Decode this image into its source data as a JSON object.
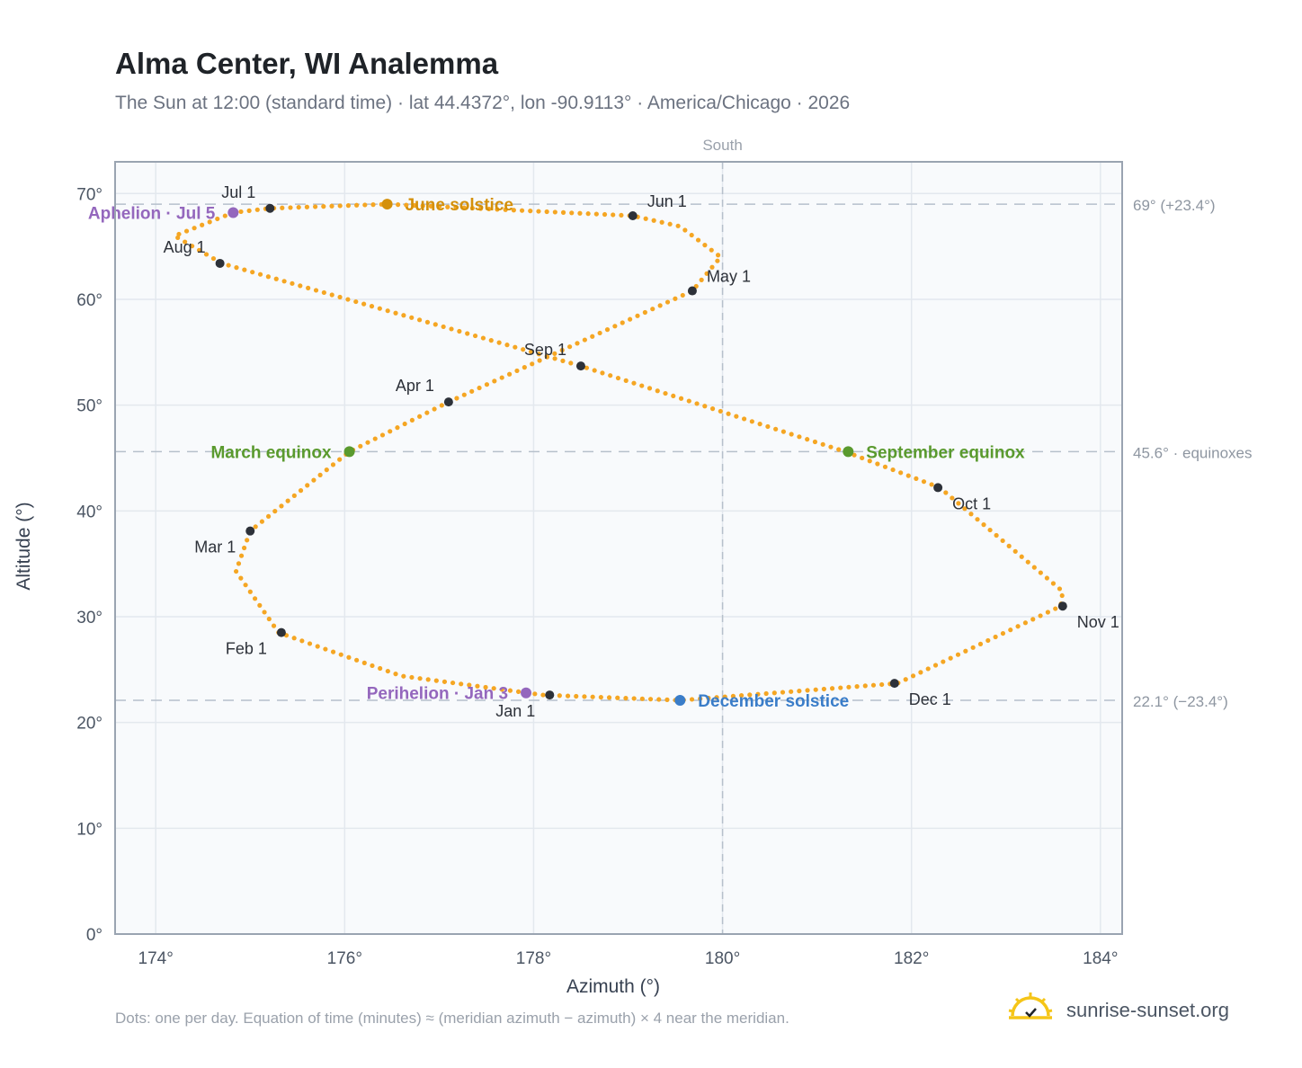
{
  "header": {
    "title": "Alma Center, WI Analemma",
    "subtitle": "The Sun at 12:00 (standard time) · lat 44.4372°, lon -90.9113° · America/Chicago · 2026"
  },
  "footer": {
    "note": "Dots: one per day. Equation of time (minutes) ≈ (meridian azimuth − azimuth) × 4 near the meridian.",
    "brand": "sunrise-sunset.org"
  },
  "colors": {
    "curve": "#f5a623",
    "month_marker": "#2d3139",
    "june_solstice": "#d4900a",
    "december_solstice": "#3a7dc9",
    "equinox": "#5a9a2e",
    "apsis": "#9467bd",
    "plot_bg": "#f8fafc",
    "grid": "#e3e8ee",
    "reference_line": "#b6c0cb"
  },
  "chart_data": {
    "type": "scatter",
    "xlabel": "Azimuth (°)",
    "ylabel": "Altitude (°)",
    "xlim": [
      173.57,
      184.23
    ],
    "ylim": [
      0,
      73
    ],
    "x_ticks": [
      {
        "value": 174,
        "label": "174°"
      },
      {
        "value": 176,
        "label": "176°"
      },
      {
        "value": 178,
        "label": "178°"
      },
      {
        "value": 180,
        "label": "180°"
      },
      {
        "value": 182,
        "label": "182°"
      },
      {
        "value": 184,
        "label": "184°"
      }
    ],
    "y_ticks": [
      {
        "value": 0,
        "label": "0°"
      },
      {
        "value": 10,
        "label": "10°"
      },
      {
        "value": 20,
        "label": "20°"
      },
      {
        "value": 30,
        "label": "30°"
      },
      {
        "value": 40,
        "label": "40°"
      },
      {
        "value": 50,
        "label": "50°"
      },
      {
        "value": 60,
        "label": "60°"
      },
      {
        "value": 70,
        "label": "70°"
      }
    ],
    "grid": true,
    "meridian": {
      "azimuth": 180,
      "label": "South"
    },
    "reference_lines": [
      {
        "altitude": 69.0,
        "label": "69° (+23.4°)"
      },
      {
        "altitude": 45.6,
        "label": "45.6° · equinoxes"
      },
      {
        "altitude": 22.1,
        "label": "22.1° (−23.4°)"
      }
    ],
    "curve_waypoints": [
      {
        "az": 178.1,
        "alt": 22.6
      },
      {
        "az": 176.6,
        "alt": 24.4
      },
      {
        "az": 175.3,
        "alt": 28.5
      },
      {
        "az": 174.85,
        "alt": 34.3
      },
      {
        "az": 175.0,
        "alt": 38.1
      },
      {
        "az": 176.05,
        "alt": 45.6
      },
      {
        "az": 177.1,
        "alt": 50.3
      },
      {
        "az": 179.68,
        "alt": 60.8
      },
      {
        "az": 179.98,
        "alt": 64.0
      },
      {
        "az": 179.55,
        "alt": 66.9
      },
      {
        "az": 179.05,
        "alt": 67.9
      },
      {
        "az": 176.45,
        "alt": 69.0
      },
      {
        "az": 175.2,
        "alt": 68.6
      },
      {
        "az": 174.82,
        "alt": 68.2
      },
      {
        "az": 174.2,
        "alt": 66.0
      },
      {
        "az": 174.7,
        "alt": 63.4
      },
      {
        "az": 178.5,
        "alt": 53.7
      },
      {
        "az": 181.3,
        "alt": 45.6
      },
      {
        "az": 182.3,
        "alt": 42.2
      },
      {
        "az": 183.6,
        "alt": 32.4
      },
      {
        "az": 183.58,
        "alt": 31.0
      },
      {
        "az": 181.85,
        "alt": 23.7
      },
      {
        "az": 179.55,
        "alt": 22.1
      },
      {
        "az": 178.1,
        "alt": 22.6
      }
    ],
    "month_markers": [
      {
        "label": "Jan 1",
        "az": 178.17,
        "alt": 22.6,
        "anchor": "below-left"
      },
      {
        "label": "Feb 1",
        "az": 175.33,
        "alt": 28.5,
        "anchor": "below-left"
      },
      {
        "label": "Mar 1",
        "az": 175.0,
        "alt": 38.1,
        "anchor": "below-left"
      },
      {
        "label": "Apr 1",
        "az": 177.1,
        "alt": 50.3,
        "anchor": "above-left"
      },
      {
        "label": "May 1",
        "az": 179.68,
        "alt": 60.8,
        "anchor": "above-right"
      },
      {
        "label": "Jun 1",
        "az": 179.05,
        "alt": 67.9,
        "anchor": "above-right"
      },
      {
        "label": "Jul 1",
        "az": 175.21,
        "alt": 68.6,
        "anchor": "above-left"
      },
      {
        "label": "Aug 1",
        "az": 174.68,
        "alt": 63.4,
        "anchor": "above-left"
      },
      {
        "label": "Sep 1",
        "az": 178.5,
        "alt": 53.7,
        "anchor": "above-left"
      },
      {
        "label": "Oct 1",
        "az": 182.28,
        "alt": 42.2,
        "anchor": "below-right"
      },
      {
        "label": "Nov 1",
        "az": 183.6,
        "alt": 31.0,
        "anchor": "below-right"
      },
      {
        "label": "Dec 1",
        "az": 181.82,
        "alt": 23.7,
        "anchor": "below-right"
      }
    ],
    "events": [
      {
        "label": "June solstice",
        "az": 176.45,
        "alt": 69.0,
        "color_key": "june_solstice",
        "anchor": "right"
      },
      {
        "label": "December solstice",
        "az": 179.55,
        "alt": 22.1,
        "color_key": "december_solstice",
        "anchor": "right"
      },
      {
        "label": "March equinox",
        "az": 176.05,
        "alt": 45.6,
        "color_key": "equinox",
        "anchor": "left"
      },
      {
        "label": "September equinox",
        "az": 181.33,
        "alt": 45.6,
        "color_key": "equinox",
        "anchor": "right"
      },
      {
        "label": "Aphelion · Jul 5",
        "az": 174.82,
        "alt": 68.2,
        "color_key": "apsis",
        "anchor": "left"
      },
      {
        "label": "Perihelion · Jan 3",
        "az": 177.92,
        "alt": 22.8,
        "color_key": "apsis",
        "anchor": "left"
      }
    ]
  }
}
